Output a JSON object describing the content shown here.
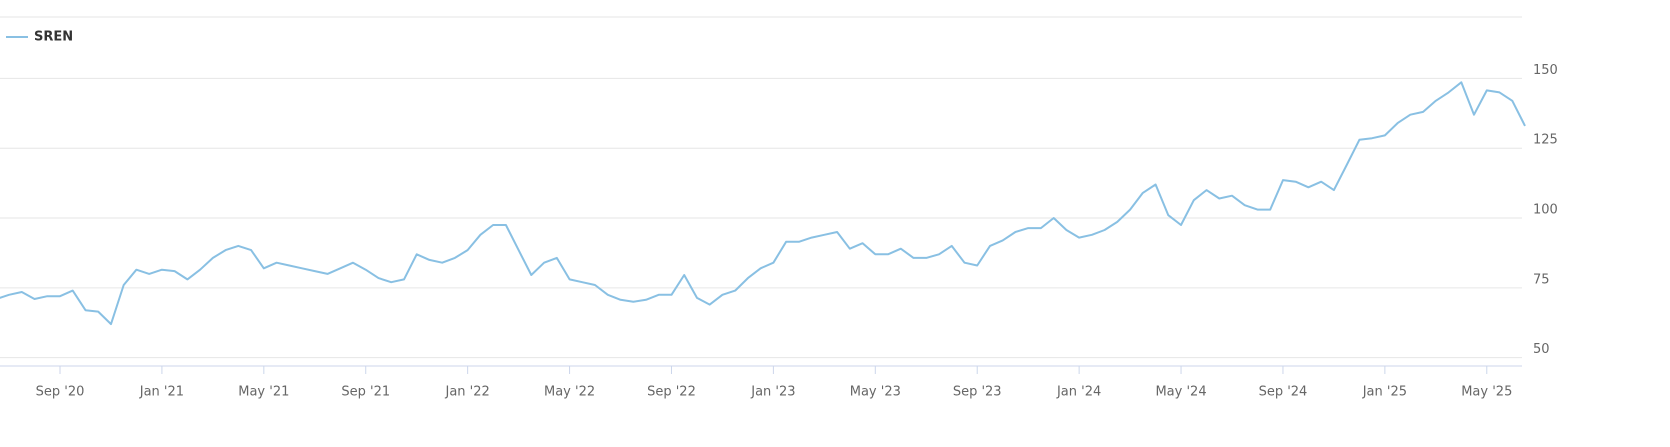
{
  "chart_data": {
    "type": "line",
    "categories": [
      null,
      null,
      null,
      null,
      null,
      "Sep '20",
      null,
      null,
      null,
      null,
      null,
      null,
      null,
      "Jan '21",
      null,
      null,
      null,
      null,
      null,
      null,
      null,
      "May '21",
      null,
      null,
      null,
      null,
      null,
      null,
      null,
      "Sep '21",
      null,
      null,
      null,
      null,
      null,
      null,
      null,
      "Jan '22",
      null,
      null,
      null,
      null,
      null,
      null,
      null,
      "May '22",
      null,
      null,
      null,
      null,
      null,
      null,
      null,
      "Sep '22",
      null,
      null,
      null,
      null,
      null,
      null,
      null,
      "Jan '23",
      null,
      null,
      null,
      null,
      null,
      null,
      null,
      "May '23",
      null,
      null,
      null,
      null,
      null,
      null,
      null,
      "Sep '23",
      null,
      null,
      null,
      null,
      null,
      null,
      null,
      "Jan '24",
      null,
      null,
      null,
      null,
      null,
      null,
      null,
      "May '24",
      null,
      null,
      null,
      null,
      null,
      null,
      null,
      "Sep '24",
      null,
      null,
      null,
      null,
      null,
      null,
      null,
      "Jan '25",
      null,
      null,
      null,
      null,
      null,
      null,
      null,
      "May '25",
      null,
      null,
      null
    ],
    "series": [
      {
        "name": "SREN",
        "color": "#89c0e3",
        "values": [
          71,
          72.5,
          73.5,
          71,
          72,
          72,
          74,
          67,
          66.5,
          62,
          76,
          81.5,
          80,
          81.5,
          81,
          78,
          81.5,
          85.7,
          88.5,
          90,
          88.5,
          82,
          84,
          83,
          82,
          81,
          80,
          82,
          84,
          81.5,
          78.5,
          77,
          78,
          87,
          85,
          84,
          85.7,
          88.5,
          94,
          97.5,
          97.5,
          88.5,
          79.6,
          84,
          85.7,
          78,
          77,
          76,
          72.5,
          70.7,
          70,
          70.7,
          72.5,
          72.5,
          79.6,
          71.4,
          69,
          72.5,
          74,
          78.5,
          82,
          84,
          91.5,
          91.5,
          93,
          94,
          95,
          89,
          91,
          87,
          87,
          89,
          85.7,
          85.7,
          87,
          90,
          84,
          83,
          90,
          92,
          95,
          96.4,
          96.4,
          100,
          95.7,
          93,
          94,
          95.7,
          98.6,
          103,
          109,
          112,
          101,
          97.5,
          106.4,
          110,
          107,
          108,
          104.6,
          103,
          103,
          113.6,
          113,
          111,
          113,
          110,
          119,
          128,
          128.6,
          129.6,
          134,
          137,
          138,
          142,
          145,
          148.6,
          137,
          145.7,
          145,
          142,
          133
        ]
      }
    ],
    "ylim": [
      47,
      172
    ],
    "yticks": [
      50,
      75,
      100,
      125,
      150
    ],
    "grid": true,
    "legend": "top-left"
  }
}
